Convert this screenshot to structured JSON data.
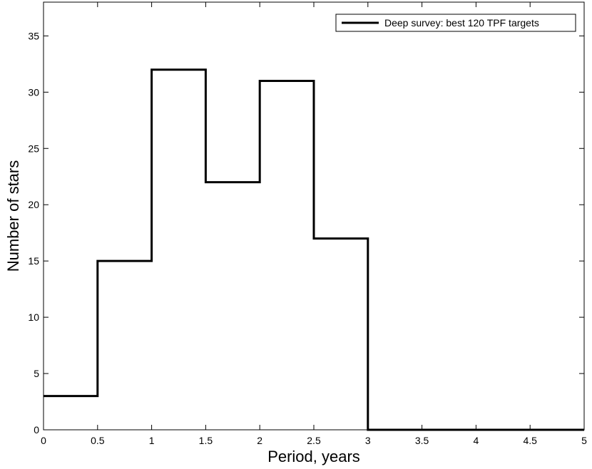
{
  "chart_data": {
    "type": "step",
    "title": "",
    "xlabel": "Period, years",
    "ylabel": "Number of stars",
    "xlim": [
      0,
      5
    ],
    "ylim": [
      0,
      38
    ],
    "grid": false,
    "legend_position": "top-right",
    "x_ticks": [
      "0",
      "0.5",
      "1",
      "1.5",
      "2",
      "2.5",
      "3",
      "3.5",
      "4",
      "4.5",
      "5"
    ],
    "y_ticks": [
      "0",
      "5",
      "10",
      "15",
      "20",
      "25",
      "30",
      "35"
    ],
    "series": [
      {
        "name": "Deep survey: best 120 TPF targets",
        "color": "#000000",
        "bin_edges": [
          0,
          0.5,
          1,
          1.5,
          2,
          2.5,
          3,
          3.5,
          4,
          4.5,
          5
        ],
        "counts": [
          3,
          15,
          32,
          22,
          31,
          17,
          0,
          0,
          0,
          0
        ]
      }
    ]
  }
}
